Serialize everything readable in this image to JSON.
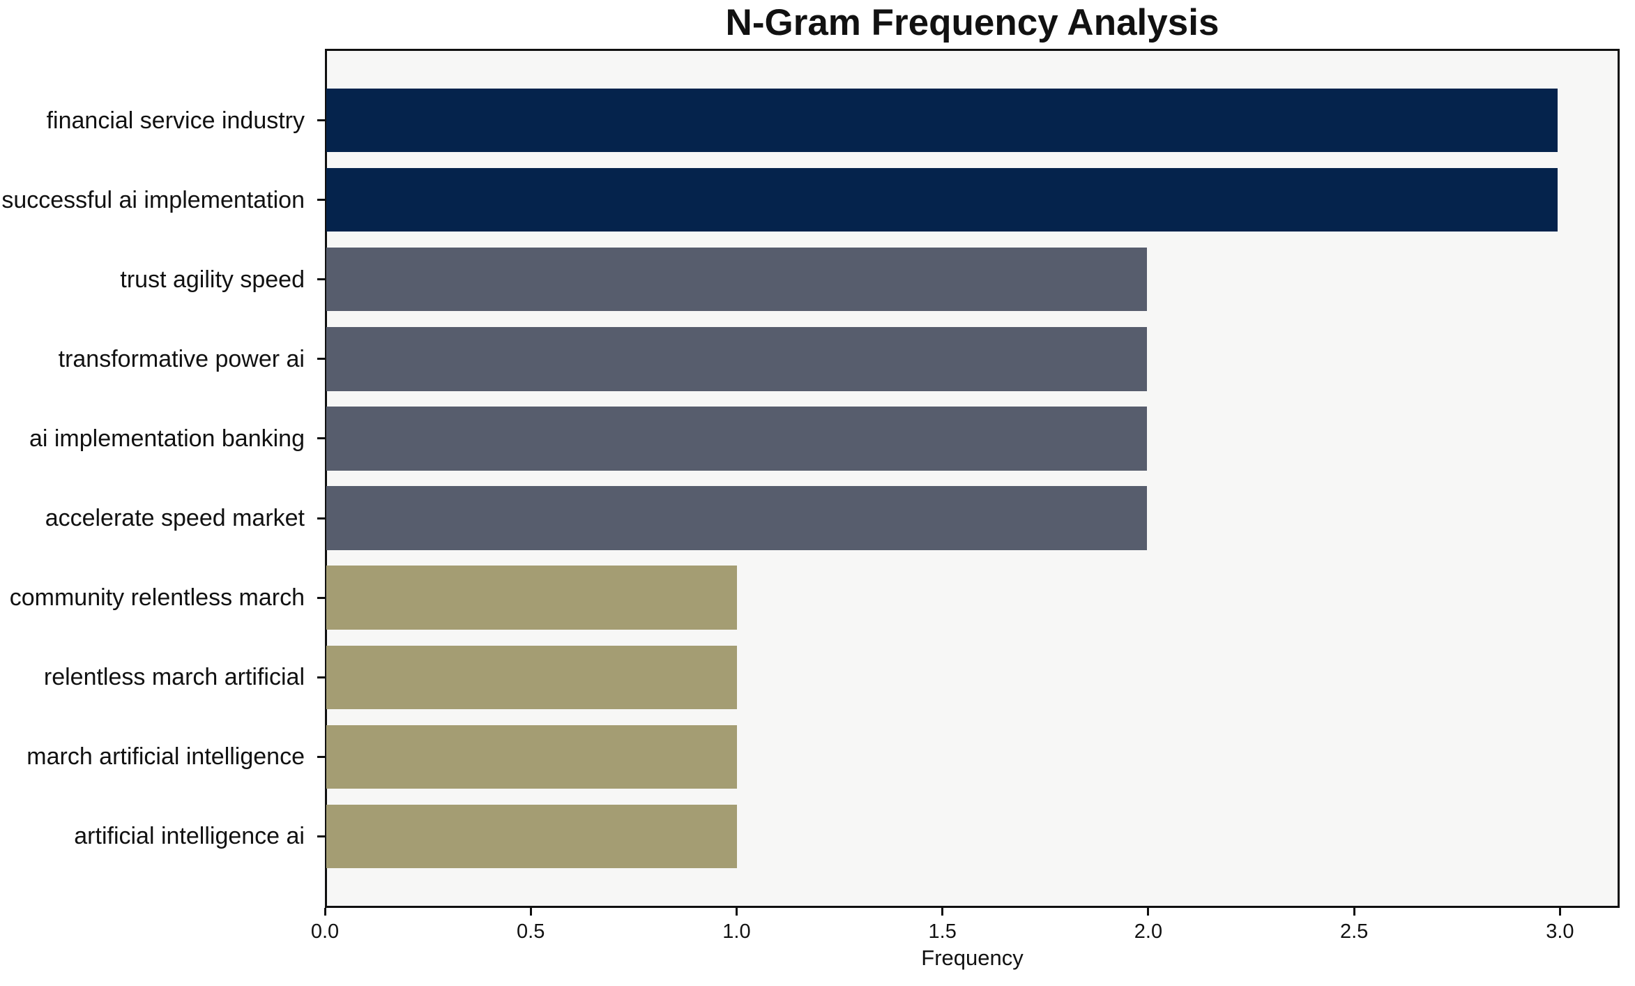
{
  "chart_data": {
    "type": "bar",
    "orientation": "horizontal",
    "title": "N-Gram Frequency Analysis",
    "xlabel": "Frequency",
    "ylabel": "",
    "categories": [
      "financial service industry",
      "successful ai implementation",
      "trust agility speed",
      "transformative power ai",
      "ai implementation banking",
      "accelerate speed market",
      "community relentless march",
      "relentless march artificial",
      "march artificial intelligence",
      "artificial intelligence ai"
    ],
    "values": [
      3,
      3,
      2,
      2,
      2,
      2,
      1,
      1,
      1,
      1
    ],
    "bar_colors": [
      "#05234c",
      "#05234c",
      "#575d6d",
      "#575d6d",
      "#575d6d",
      "#575d6d",
      "#a49d73",
      "#a49d73",
      "#a49d73",
      "#a49d73"
    ],
    "x_tick_labels": [
      "0.0",
      "0.5",
      "1.0",
      "1.5",
      "2.0",
      "2.5",
      "3.0"
    ],
    "x_ticks": [
      0,
      0.5,
      1,
      1.5,
      2,
      2.5,
      3
    ],
    "xlim": [
      0,
      3.145
    ],
    "grid": false,
    "legend": null,
    "colors": {
      "freq_3": "#05234c",
      "freq_2": "#575d6d",
      "freq_1": "#a49d73",
      "plot_background": "#f7f7f6",
      "figure_background": "#ffffff",
      "axis": "#101010",
      "text": "#111111"
    }
  }
}
